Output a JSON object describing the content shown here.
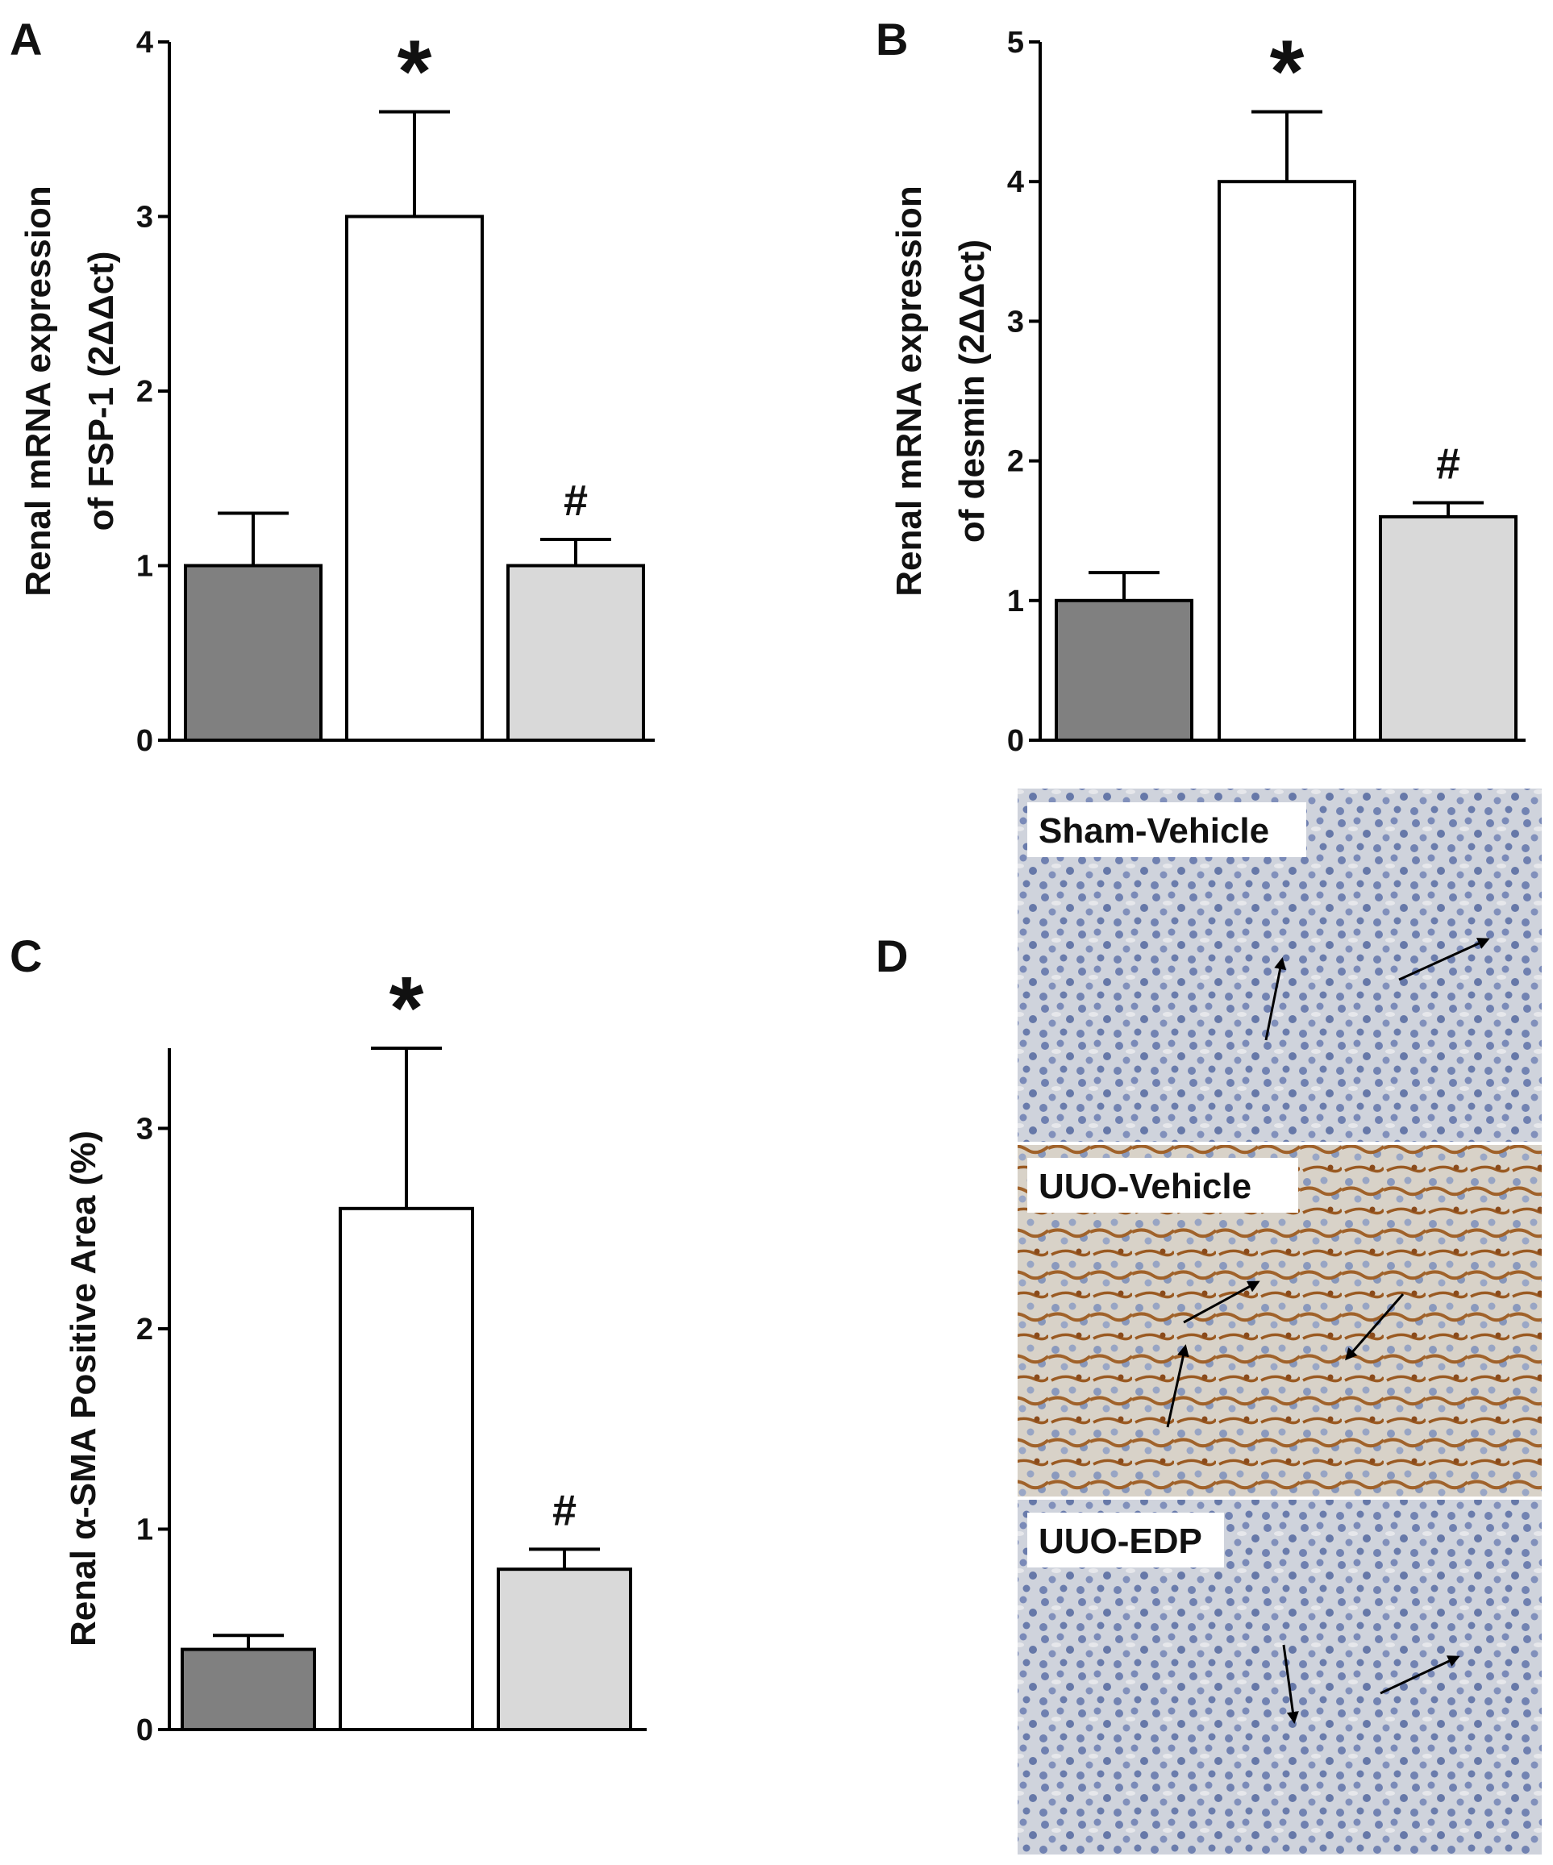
{
  "chart_data": [
    {
      "panel": "A",
      "type": "bar",
      "ylabel_lines": [
        "Renal mRNA expression",
        "of FSP-1 (2ΔΔct)"
      ],
      "ylim": [
        0,
        4
      ],
      "yticks": [
        "0",
        "1",
        "2",
        "3",
        "4"
      ],
      "values": [
        1.0,
        3.0,
        1.0
      ],
      "errors": [
        0.3,
        0.6,
        0.15
      ],
      "markers": [
        "",
        "*",
        "#"
      ],
      "bar_colors": [
        "#808080",
        "#ffffff",
        "#d9d9d9"
      ]
    },
    {
      "panel": "B",
      "type": "bar",
      "ylabel_lines": [
        "Renal mRNA expression",
        "of desmin (2ΔΔct)"
      ],
      "ylim": [
        0,
        5
      ],
      "yticks": [
        "0",
        "1",
        "2",
        "3",
        "4",
        "5"
      ],
      "values": [
        1.0,
        4.0,
        1.6
      ],
      "errors": [
        0.2,
        0.5,
        0.1
      ],
      "markers": [
        "",
        "*",
        "#"
      ],
      "bar_colors": [
        "#808080",
        "#ffffff",
        "#d9d9d9"
      ]
    },
    {
      "panel": "C",
      "type": "bar",
      "ylabel_lines": [
        "Renal α-SMA Positive Area (%)"
      ],
      "ylim": [
        0,
        3.4
      ],
      "yticks": [
        "0",
        "1",
        "2",
        "3"
      ],
      "values": [
        0.4,
        2.6,
        0.8
      ],
      "errors": [
        0.07,
        0.8,
        0.1
      ],
      "markers": [
        "",
        "*",
        "#"
      ],
      "bar_colors": [
        "#808080",
        "#ffffff",
        "#d9d9d9"
      ]
    }
  ],
  "micrographs": {
    "panel": "D",
    "labels": [
      "Sham-Vehicle",
      "UUO-Vehicle",
      "UUO-EDP"
    ]
  }
}
